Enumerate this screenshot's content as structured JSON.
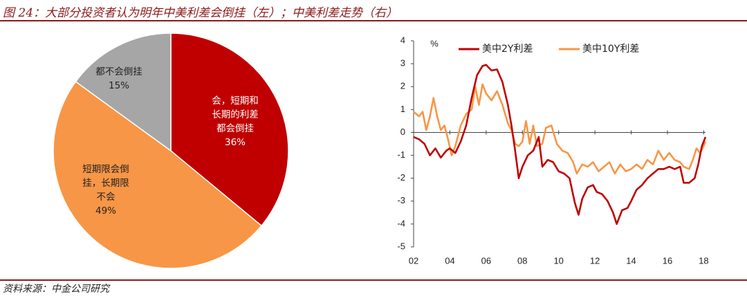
{
  "figure": {
    "title": "图 24：大部分投资者认为明年中美利差会倒挂（左）；中美利差走势（右）",
    "source": "资料来源：中金公司研究"
  },
  "colors": {
    "dark_red": "#c00000",
    "orange": "#f79646",
    "gray": "#a6a6a6",
    "accent": "#8b1a1a"
  },
  "chart_data": [
    {
      "type": "pie",
      "slices": [
        {
          "lines": [
            "会，短期和",
            "长期的利差",
            "都会倒挂"
          ],
          "pct_label": "36%",
          "value": 36,
          "color": "#c00000",
          "text_color": "#ffffff"
        },
        {
          "lines": [
            "短期限会倒",
            "挂，长期限",
            "不会"
          ],
          "pct_label": "49%",
          "value": 49,
          "color": "#f79646",
          "text_color": "#222222"
        },
        {
          "lines": [
            "都不会倒挂"
          ],
          "pct_label": "15%",
          "value": 15,
          "color": "#a6a6a6",
          "text_color": "#222222"
        }
      ]
    },
    {
      "type": "line",
      "ylabel": "%",
      "ylim": [
        -5,
        4
      ],
      "yticks": [
        -5,
        -4,
        -3,
        -2,
        -1,
        0,
        1,
        2,
        3,
        4
      ],
      "xlim": [
        2002,
        2018.1
      ],
      "xticks": [
        2002,
        2004,
        2006,
        2008,
        2010,
        2012,
        2014,
        2016,
        2018
      ],
      "xtick_labels": [
        "02",
        "04",
        "06",
        "08",
        "10",
        "12",
        "14",
        "16",
        "18"
      ],
      "legend": "top",
      "series": [
        {
          "name": "美中2Y利差",
          "color": "#c00000",
          "points": [
            [
              2002.0,
              -0.2
            ],
            [
              2002.3,
              -0.3
            ],
            [
              2002.6,
              -0.5
            ],
            [
              2002.9,
              -1.0
            ],
            [
              2003.2,
              -0.7
            ],
            [
              2003.5,
              -1.1
            ],
            [
              2003.8,
              -0.8
            ],
            [
              2004.0,
              -0.7
            ],
            [
              2004.3,
              -0.9
            ],
            [
              2004.6,
              -0.4
            ],
            [
              2004.9,
              0.3
            ],
            [
              2005.2,
              1.5
            ],
            [
              2005.5,
              2.5
            ],
            [
              2005.8,
              2.9
            ],
            [
              2006.0,
              2.95
            ],
            [
              2006.3,
              2.7
            ],
            [
              2006.6,
              2.75
            ],
            [
              2006.9,
              2.2
            ],
            [
              2007.2,
              1.2
            ],
            [
              2007.4,
              0.3
            ],
            [
              2007.6,
              -0.8
            ],
            [
              2007.8,
              -2.0
            ],
            [
              2008.0,
              -1.5
            ],
            [
              2008.3,
              -1.0
            ],
            [
              2008.6,
              -0.8
            ],
            [
              2008.9,
              -0.2
            ],
            [
              2009.1,
              -1.5
            ],
            [
              2009.4,
              -1.2
            ],
            [
              2009.7,
              -1.3
            ],
            [
              2010.0,
              -1.7
            ],
            [
              2010.3,
              -1.8
            ],
            [
              2010.6,
              -2.0
            ],
            [
              2010.9,
              -3.1
            ],
            [
              2011.1,
              -3.6
            ],
            [
              2011.3,
              -2.9
            ],
            [
              2011.6,
              -2.4
            ],
            [
              2011.9,
              -2.3
            ],
            [
              2012.1,
              -2.6
            ],
            [
              2012.4,
              -2.7
            ],
            [
              2012.7,
              -3.0
            ],
            [
              2013.0,
              -3.5
            ],
            [
              2013.2,
              -4.0
            ],
            [
              2013.5,
              -3.4
            ],
            [
              2013.8,
              -3.3
            ],
            [
              2014.0,
              -3.0
            ],
            [
              2014.3,
              -2.5
            ],
            [
              2014.6,
              -2.3
            ],
            [
              2014.9,
              -2.0
            ],
            [
              2015.2,
              -1.8
            ],
            [
              2015.5,
              -1.6
            ],
            [
              2015.8,
              -1.6
            ],
            [
              2016.1,
              -1.5
            ],
            [
              2016.4,
              -1.6
            ],
            [
              2016.7,
              -1.5
            ],
            [
              2016.9,
              -2.2
            ],
            [
              2017.2,
              -2.2
            ],
            [
              2017.5,
              -2.0
            ],
            [
              2017.7,
              -1.4
            ],
            [
              2017.9,
              -0.6
            ],
            [
              2018.1,
              -0.2
            ]
          ]
        },
        {
          "name": "美中10Y利差",
          "color": "#f79646",
          "points": [
            [
              2002.0,
              0.9
            ],
            [
              2002.3,
              0.7
            ],
            [
              2002.5,
              0.9
            ],
            [
              2002.7,
              0.1
            ],
            [
              2002.9,
              0.7
            ],
            [
              2003.1,
              1.5
            ],
            [
              2003.3,
              0.7
            ],
            [
              2003.5,
              0.1
            ],
            [
              2003.7,
              0.3
            ],
            [
              2003.9,
              -0.3
            ],
            [
              2004.1,
              -1.0
            ],
            [
              2004.3,
              -0.6
            ],
            [
              2004.6,
              0.3
            ],
            [
              2004.9,
              0.8
            ],
            [
              2005.2,
              1.0
            ],
            [
              2005.4,
              2.0
            ],
            [
              2005.6,
              1.2
            ],
            [
              2005.8,
              2.1
            ],
            [
              2006.0,
              1.7
            ],
            [
              2006.3,
              1.4
            ],
            [
              2006.6,
              1.8
            ],
            [
              2006.9,
              1.2
            ],
            [
              2007.2,
              0.4
            ],
            [
              2007.4,
              0.1
            ],
            [
              2007.6,
              -0.5
            ],
            [
              2007.8,
              -0.6
            ],
            [
              2008.0,
              -0.4
            ],
            [
              2008.2,
              0.5
            ],
            [
              2008.4,
              -0.5
            ],
            [
              2008.6,
              0.3
            ],
            [
              2008.8,
              -0.6
            ],
            [
              2009.1,
              -0.5
            ],
            [
              2009.3,
              0.2
            ],
            [
              2009.6,
              0.3
            ],
            [
              2009.9,
              -0.5
            ],
            [
              2010.2,
              -0.8
            ],
            [
              2010.5,
              -0.9
            ],
            [
              2010.8,
              -1.3
            ],
            [
              2011.0,
              -1.8
            ],
            [
              2011.3,
              -1.4
            ],
            [
              2011.6,
              -1.5
            ],
            [
              2011.9,
              -1.3
            ],
            [
              2012.2,
              -1.7
            ],
            [
              2012.5,
              -1.5
            ],
            [
              2012.8,
              -1.3
            ],
            [
              2013.1,
              -1.8
            ],
            [
              2013.4,
              -1.4
            ],
            [
              2013.7,
              -1.7
            ],
            [
              2014.0,
              -1.6
            ],
            [
              2014.3,
              -1.4
            ],
            [
              2014.6,
              -1.6
            ],
            [
              2014.9,
              -1.2
            ],
            [
              2015.2,
              -1.4
            ],
            [
              2015.5,
              -0.8
            ],
            [
              2015.8,
              -1.2
            ],
            [
              2016.1,
              -0.9
            ],
            [
              2016.4,
              -1.2
            ],
            [
              2016.7,
              -1.3
            ],
            [
              2016.9,
              -1.5
            ],
            [
              2017.2,
              -1.6
            ],
            [
              2017.4,
              -1.2
            ],
            [
              2017.6,
              -0.7
            ],
            [
              2017.8,
              -0.9
            ],
            [
              2018.0,
              -0.6
            ],
            [
              2018.1,
              -0.4
            ]
          ]
        }
      ]
    }
  ]
}
